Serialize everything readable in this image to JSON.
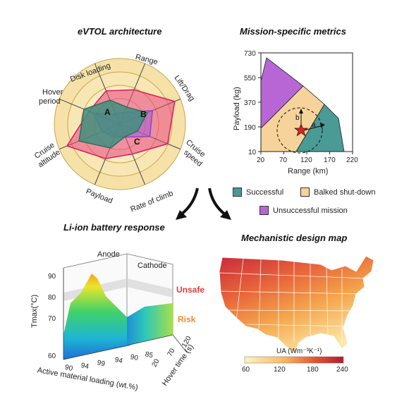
{
  "panels": {
    "radar": {
      "title": "eVTOL architecture",
      "axes": [
        "Range",
        "Lift/Drag",
        "Cruise speed",
        "Rate of climb",
        "Payload",
        "Cruise altitude",
        "Hover period",
        "Disk loading"
      ],
      "series_labels": [
        "A",
        "B",
        "C"
      ],
      "colors": {
        "A": "#3f8f7e",
        "B": "#a45ad8",
        "C": "#e8417c",
        "rings": "#f6e2a8",
        "ring_line": "#c9a44a"
      }
    },
    "mission": {
      "title": "Mission-specific metrics",
      "xlabel": "Range (km)",
      "ylabel": "Payload (kg)",
      "xticks": [
        "20",
        "70",
        "120",
        "170",
        "220"
      ],
      "yticks": [
        "10",
        "190",
        "370",
        "550",
        "730"
      ],
      "point_labels": [
        "a",
        "b"
      ],
      "legend": {
        "successful": "Successful",
        "balked": "Balked shut-down",
        "unsuccessful": "Unsuccessful mission"
      },
      "colors": {
        "successful": "#4a9a95",
        "balked": "#f6d39a",
        "unsuccessful": "#b866d6",
        "star": "#e02020"
      }
    },
    "battery": {
      "title": "Li-ion battery response",
      "labels": {
        "anode": "Anode",
        "cathode": "Cathode",
        "unsafe": "Unsafe",
        "risk": "Risk"
      },
      "zlabel": "Tmax(°C)",
      "zticks": [
        "60",
        "70",
        "80",
        "90"
      ],
      "xlabel": "Active material loading (wt.%)",
      "xticks_left": [
        "90",
        "94",
        "99"
      ],
      "xticks_right": [
        "94",
        "90",
        "85"
      ],
      "ylabel": "Hover time (s)",
      "yticks": [
        "20",
        "70",
        "120"
      ],
      "colors": {
        "unsafe": "#e53935",
        "risk": "#f28c28"
      }
    },
    "map": {
      "title": "Mechanistic design map",
      "colorbar_label": "UA (Wm⁻³K⁻¹)",
      "colorbar_ticks": [
        "60",
        "120",
        "180",
        "240"
      ],
      "colors": {
        "low": "#fdf3c4",
        "mid": "#f39b3c",
        "high": "#b31b30"
      }
    }
  }
}
